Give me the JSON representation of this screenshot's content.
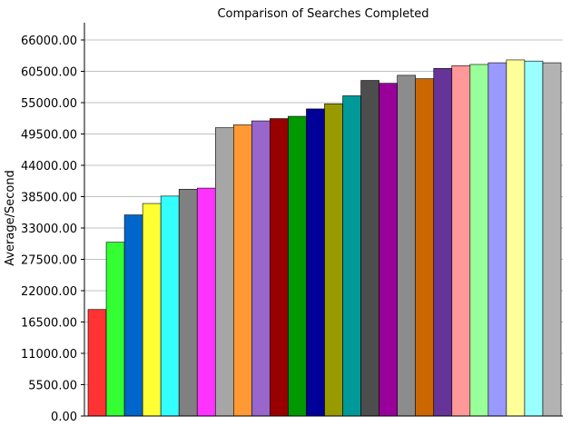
{
  "chart_data": {
    "type": "bar",
    "title": "Comparison of Searches Completed",
    "xlabel": "",
    "ylabel": "Average/Second",
    "ylim": [
      0,
      66000
    ],
    "yticks": [
      "0.00",
      "5500.00",
      "11000.00",
      "16500.00",
      "22000.00",
      "27500.00",
      "33000.00",
      "38500.00",
      "44000.00",
      "49500.00",
      "55000.00",
      "60500.00",
      "66000.00"
    ],
    "grid": true,
    "legend": "none",
    "values": [
      18700,
      30500,
      35300,
      37300,
      38600,
      39800,
      40000,
      50600,
      51100,
      51800,
      52200,
      52600,
      53900,
      54800,
      56200,
      58900,
      58400,
      59800,
      59200,
      61000,
      61500,
      61700,
      62000,
      62500,
      62300,
      62000
    ],
    "colors": [
      "#ff3333",
      "#33ff33",
      "#0066cc",
      "#ffff33",
      "#33ffff",
      "#808080",
      "#ff33ff",
      "#a6a6a6",
      "#ff9933",
      "#9966cc",
      "#990000",
      "#009900",
      "#000099",
      "#999900",
      "#009999",
      "#4d4d4d",
      "#990099",
      "#8c8c8c",
      "#cc6600",
      "#663399",
      "#ff9999",
      "#99ff99",
      "#9999ff",
      "#ffff99",
      "#99ffff",
      "#b3b3b3"
    ]
  }
}
